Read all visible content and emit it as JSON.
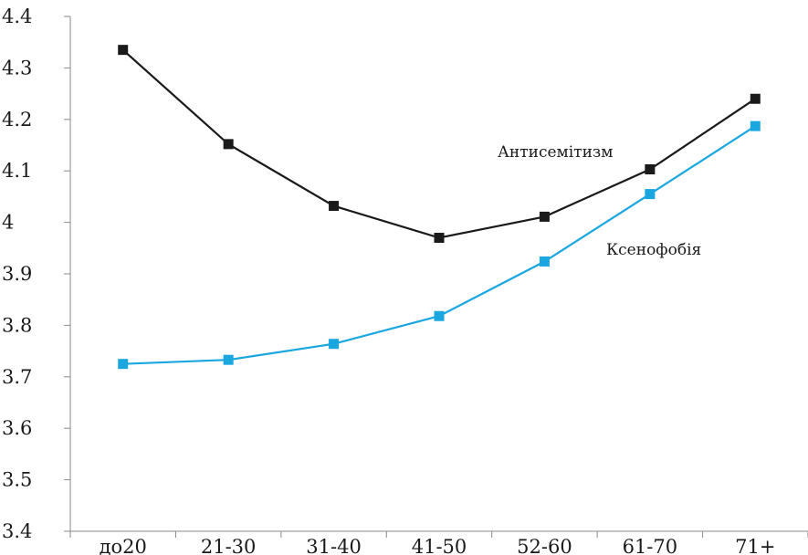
{
  "chart_data": {
    "type": "line",
    "title": "",
    "xlabel": "",
    "ylabel": "",
    "categories": [
      "до20",
      "21-30",
      "31-40",
      "41-50",
      "52-60",
      "61-70",
      "71+"
    ],
    "ylim": [
      3.4,
      4.4
    ],
    "yticks": [
      "3.4",
      "3.5",
      "3.6",
      "3.7",
      "3.8",
      "3.9",
      "4",
      "4.1",
      "4.2",
      "4.3",
      "4.4"
    ],
    "grid": false,
    "series": [
      {
        "name": "Антисемітизм",
        "color": "#1a1a1a",
        "marker": "square",
        "values": [
          4.335,
          4.152,
          4.032,
          3.97,
          4.011,
          4.103,
          4.24
        ]
      },
      {
        "name": "Ксенофобія",
        "color": "#1aa7e0",
        "marker": "square",
        "values": [
          3.725,
          3.733,
          3.764,
          3.818,
          3.924,
          4.055,
          4.187
        ]
      }
    ]
  }
}
